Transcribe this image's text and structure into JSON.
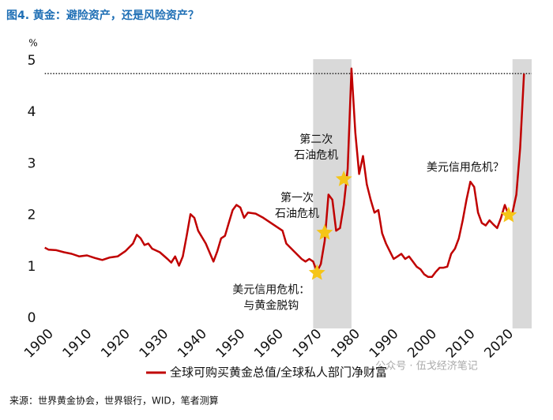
{
  "chart_data": {
    "type": "line",
    "title": "图4. 黄金：避险资产，还是风险资产？",
    "y_unit": "%",
    "x": [
      1900,
      1901,
      1903,
      1905,
      1907,
      1909,
      1911,
      1913,
      1915,
      1917,
      1919,
      1921,
      1923,
      1924,
      1925,
      1926,
      1927,
      1928,
      1930,
      1932,
      1933,
      1934,
      1935,
      1936,
      1937,
      1938,
      1939,
      1940,
      1942,
      1944,
      1945,
      1946,
      1947,
      1948,
      1949,
      1950,
      1951,
      1952,
      1953,
      1955,
      1957,
      1959,
      1961,
      1962,
      1963,
      1965,
      1967,
      1968,
      1969,
      1970,
      1971,
      1972,
      1973,
      1974,
      1975,
      1976,
      1977,
      1978,
      1979,
      1980,
      1981,
      1982,
      1983,
      1984,
      1985,
      1986,
      1987,
      1988,
      1989,
      1990,
      1991,
      1992,
      1993,
      1994,
      1995,
      1996,
      1997,
      1998,
      1999,
      2000,
      2001,
      2002,
      2003,
      2004,
      2005,
      2006,
      2007,
      2008,
      2009,
      2010,
      2011,
      2012,
      2013,
      2014,
      2015,
      2016,
      2017,
      2018,
      2019,
      2020,
      2021,
      2022,
      2023,
      2024,
      2025
    ],
    "series": [
      {
        "name": "全球可购买黄金总值/全球私人部门净财富",
        "color": "#c00000",
        "values": [
          1.37,
          1.33,
          1.32,
          1.28,
          1.25,
          1.2,
          1.22,
          1.17,
          1.13,
          1.18,
          1.2,
          1.3,
          1.45,
          1.62,
          1.55,
          1.42,
          1.45,
          1.35,
          1.28,
          1.15,
          1.08,
          1.2,
          1.02,
          1.2,
          1.6,
          2.02,
          1.95,
          1.7,
          1.45,
          1.1,
          1.3,
          1.55,
          1.6,
          1.85,
          2.1,
          2.2,
          2.15,
          1.95,
          2.05,
          2.03,
          1.95,
          1.85,
          1.75,
          1.7,
          1.45,
          1.3,
          1.15,
          1.1,
          1.15,
          1.1,
          0.9,
          1.05,
          1.5,
          2.4,
          2.3,
          1.7,
          1.75,
          2.2,
          2.9,
          4.85,
          3.6,
          2.8,
          3.15,
          2.6,
          2.3,
          2.05,
          2.1,
          1.65,
          1.45,
          1.3,
          1.15,
          1.2,
          1.25,
          1.15,
          1.2,
          1.1,
          1.0,
          0.95,
          0.85,
          0.8,
          0.8,
          0.9,
          0.98,
          0.98,
          1.0,
          1.25,
          1.35,
          1.55,
          1.9,
          2.3,
          2.65,
          2.55,
          2.05,
          1.85,
          1.8,
          1.9,
          1.82,
          1.75,
          1.95,
          2.2,
          2.0,
          2.05,
          2.4,
          3.3,
          4.75
        ]
      }
    ],
    "xlim": [
      1898,
      2027
    ],
    "xticks": [
      1900,
      1910,
      1920,
      1930,
      1940,
      1950,
      1960,
      1970,
      1980,
      1990,
      2000,
      2010,
      2020
    ],
    "ylim": [
      0,
      5
    ],
    "yticks": [
      0,
      1,
      2,
      3,
      4,
      5
    ],
    "shaded_ranges": [
      [
        1970,
        1980
      ],
      [
        2022,
        2027
      ]
    ],
    "reference_line": {
      "y": 4.75,
      "x": [
        1900,
        2027
      ]
    },
    "annotations": [
      {
        "lines": [
          "美元信用危机：",
          "与黄金脱钩"
        ],
        "x": 1971,
        "y": 0.88
      },
      {
        "lines": [
          "第一次",
          "石油危机"
        ],
        "x": 1973,
        "y": 1.66
      },
      {
        "lines": [
          "第二次",
          "石油危机"
        ],
        "x": 1978,
        "y": 2.7
      },
      {
        "lines": [
          "美元信用危机？"
        ],
        "x": 2021,
        "y": 2.0
      }
    ],
    "source": "来源：世界黄金协会，世界银行，WID，笔者测算",
    "watermark": "公众号 · 伍戈经济笔记"
  }
}
